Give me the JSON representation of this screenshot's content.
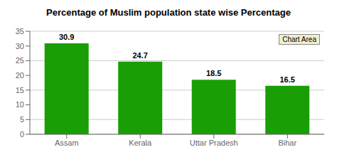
{
  "chart_data": {
    "type": "bar",
    "title": "Percentage of Muslim population state wise Percentage",
    "categories": [
      "Assam",
      "Kerala",
      "Uttar Pradesh",
      "Bihar"
    ],
    "values": [
      30.9,
      24.7,
      18.5,
      16.5
    ],
    "color": "#1a9e06",
    "ylim": [
      0,
      35
    ],
    "yticks": [
      0,
      5,
      10,
      15,
      20,
      25,
      30,
      35
    ],
    "grid": true,
    "data_labels": true,
    "annotation": "Chart Area"
  }
}
